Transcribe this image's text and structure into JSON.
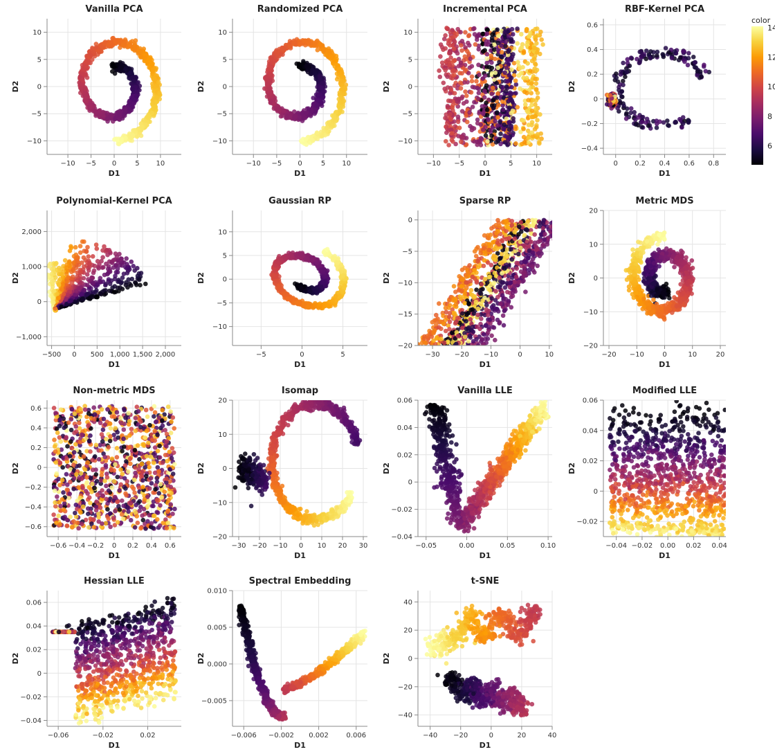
{
  "legend": {
    "title": "color",
    "ticks": [
      "14",
      "12",
      "10",
      "8",
      "6"
    ],
    "tick_values": [
      14,
      12,
      10,
      8,
      6
    ],
    "range": [
      4.7,
      14.1
    ],
    "colormap": "inferno",
    "stops": [
      "#000004",
      "#1b0c41",
      "#4a0c6b",
      "#781c6d",
      "#a52c60",
      "#cf4446",
      "#ed6925",
      "#fb9b06",
      "#f7d13d",
      "#fcffa4"
    ]
  },
  "chart_data": [
    {
      "type": "scatter",
      "title": "Vanilla PCA",
      "xlabel": "D1",
      "ylabel": "D2",
      "xlim": [
        -14.5,
        14.5
      ],
      "ylim": [
        -12.5,
        12.5
      ],
      "xticks": [
        -10,
        -5,
        0,
        5,
        10
      ],
      "yticks": [
        -10,
        -5,
        0,
        5,
        10
      ],
      "shape": "spiral",
      "points_per_chart": 1000
    },
    {
      "type": "scatter",
      "title": "Randomized PCA",
      "xlabel": "D1",
      "ylabel": "D2",
      "xlim": [
        -14.5,
        14.5
      ],
      "ylim": [
        -12.5,
        12.5
      ],
      "xticks": [
        -10,
        -5,
        0,
        5,
        10
      ],
      "yticks": [
        -10,
        -5,
        0,
        5,
        10
      ],
      "shape": "spiral",
      "points_per_chart": 1000
    },
    {
      "type": "scatter",
      "title": "Incremental PCA",
      "xlabel": "D1",
      "ylabel": "D2",
      "xlim": [
        -13,
        13
      ],
      "ylim": [
        -12.5,
        12.5
      ],
      "xticks": [
        -10,
        -5,
        0,
        5,
        10
      ],
      "yticks": [
        -10,
        -5,
        0,
        5,
        10
      ],
      "shape": "strips",
      "points_per_chart": 1000
    },
    {
      "type": "scatter",
      "title": "RBF-Kernel PCA",
      "xlabel": "D1",
      "ylabel": "D2",
      "xlim": [
        -0.1,
        0.9
      ],
      "ylim": [
        -0.45,
        0.65
      ],
      "xticks": [
        0,
        0.2,
        0.4,
        0.6,
        0.8
      ],
      "yticks": [
        -0.4,
        -0.2,
        0,
        0.2,
        0.4,
        0.6
      ],
      "shape": "rbf",
      "points_per_chart": 1000
    },
    {
      "type": "scatter",
      "title": "Polynomial-Kernel PCA",
      "xlabel": "D1",
      "ylabel": "D2",
      "xlim": [
        -600,
        2350
      ],
      "ylim": [
        -1250,
        2600
      ],
      "xticks": [
        -500,
        0,
        500,
        1000,
        1500,
        2000
      ],
      "xtick_labels": [
        "−500",
        "0",
        "500",
        "1,000",
        "1,500",
        "2,000"
      ],
      "yticks": [
        -1000,
        0,
        1000,
        2000
      ],
      "ytick_labels": [
        "−1,000",
        "0",
        "1,000",
        "2,000"
      ],
      "shape": "poly",
      "points_per_chart": 1000
    },
    {
      "type": "scatter",
      "title": "Gaussian RP",
      "xlabel": "D1",
      "ylabel": "D2",
      "xlim": [
        -8.5,
        8
      ],
      "ylim": [
        -14,
        14.5
      ],
      "xticks": [
        -5,
        0,
        5
      ],
      "yticks": [
        -10,
        -5,
        0,
        5,
        10
      ],
      "shape": "gauss",
      "points_per_chart": 1000
    },
    {
      "type": "scatter",
      "title": "Sparse RP",
      "xlabel": "D1",
      "ylabel": "D2",
      "xlim": [
        -35,
        11
      ],
      "ylim": [
        -20,
        1.5
      ],
      "xticks": [
        -30,
        -20,
        -10,
        0,
        10
      ],
      "yticks": [
        -20,
        -15,
        -10,
        -5,
        0
      ],
      "shape": "sparse",
      "points_per_chart": 1000
    },
    {
      "type": "scatter",
      "title": "Metric MDS",
      "xlabel": "D1",
      "ylabel": "D2",
      "xlim": [
        -22,
        22
      ],
      "ylim": [
        -20,
        20
      ],
      "xticks": [
        -20,
        -10,
        0,
        10,
        20
      ],
      "yticks": [
        -20,
        -10,
        0,
        10,
        20
      ],
      "shape": "mds",
      "points_per_chart": 1000
    },
    {
      "type": "scatter",
      "title": "Non-metric MDS",
      "xlabel": "D1",
      "ylabel": "D2",
      "xlim": [
        -0.72,
        0.72
      ],
      "ylim": [
        -0.7,
        0.68
      ],
      "xticks": [
        -0.6,
        -0.4,
        -0.2,
        0,
        0.2,
        0.4,
        0.6
      ],
      "yticks": [
        -0.6,
        -0.4,
        -0.2,
        0,
        0.2,
        0.4,
        0.6
      ],
      "shape": "random",
      "points_per_chart": 1000
    },
    {
      "type": "scatter",
      "title": "Isomap",
      "xlabel": "D1",
      "ylabel": "D2",
      "xlim": [
        -33,
        32
      ],
      "ylim": [
        -20,
        20
      ],
      "xticks": [
        -30,
        -20,
        -10,
        0,
        10,
        20,
        30
      ],
      "yticks": [
        -20,
        -10,
        0,
        10,
        20
      ],
      "shape": "isomap",
      "points_per_chart": 1000
    },
    {
      "type": "scatter",
      "title": "Vanilla LLE",
      "xlabel": "D1",
      "ylabel": "D2",
      "xlim": [
        -0.06,
        0.105
      ],
      "ylim": [
        -0.04,
        0.06
      ],
      "xticks": [
        -0.05,
        0,
        0.05,
        0.1
      ],
      "xtick_labels": [
        "−0.05",
        "0.00",
        "0.05",
        "0.10"
      ],
      "yticks": [
        -0.04,
        -0.02,
        0,
        0.02,
        0.04,
        0.06
      ],
      "shape": "vlle",
      "points_per_chart": 1000
    },
    {
      "type": "scatter",
      "title": "Modified LLE",
      "xlabel": "D1",
      "ylabel": "D2",
      "xlim": [
        -0.05,
        0.045
      ],
      "ylim": [
        -0.03,
        0.06
      ],
      "xticks": [
        -0.04,
        -0.02,
        0,
        0.02,
        0.04
      ],
      "xtick_labels": [
        "−0.04",
        "−0.02",
        "0.00",
        "0.02",
        "0.04"
      ],
      "yticks": [
        -0.02,
        0,
        0.02,
        0.04,
        0.06
      ],
      "shape": "mlle",
      "points_per_chart": 1000
    },
    {
      "type": "scatter",
      "title": "Hessian LLE",
      "xlabel": "D1",
      "ylabel": "D2",
      "xlim": [
        -0.07,
        0.05
      ],
      "ylim": [
        -0.045,
        0.07
      ],
      "xticks": [
        -0.06,
        -0.02,
        0.02
      ],
      "yticks": [
        -0.04,
        -0.02,
        0,
        0.02,
        0.04,
        0.06
      ],
      "shape": "hlle",
      "points_per_chart": 1000
    },
    {
      "type": "scatter",
      "title": "Spectral Embedding",
      "xlabel": "D1",
      "ylabel": "D2",
      "xlim": [
        -0.0072,
        0.0072
      ],
      "ylim": [
        -0.0085,
        0.01
      ],
      "xticks": [
        -0.006,
        -0.002,
        0.002,
        0.006
      ],
      "yticks": [
        -0.005,
        0,
        0.005,
        0.01
      ],
      "ytick_labels": [
        "−0.005",
        "0.000",
        "0.005",
        "0.010"
      ],
      "shape": "spectral",
      "points_per_chart": 1000
    },
    {
      "type": "scatter",
      "title": "t-SNE",
      "xlabel": "D1",
      "ylabel": "D2",
      "xlim": [
        -48,
        40
      ],
      "ylim": [
        -48,
        48
      ],
      "xticks": [
        -40,
        -20,
        0,
        20,
        40
      ],
      "yticks": [
        -40,
        -20,
        0,
        20,
        40
      ],
      "shape": "tsne",
      "points_per_chart": 1000
    }
  ]
}
